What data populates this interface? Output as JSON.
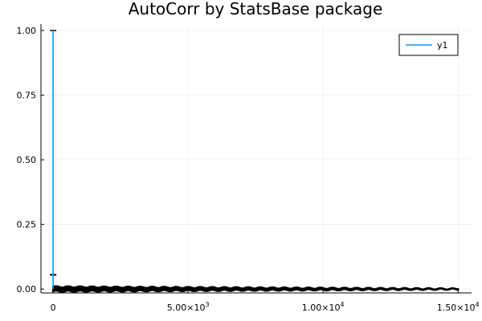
{
  "chart_data": {
    "type": "line",
    "title": "AutoCorr by StatsBase package",
    "xlabel": "",
    "ylabel": "",
    "xlim": [
      -450,
      15500
    ],
    "ylim": [
      -0.015,
      1.025
    ],
    "grid": true,
    "legend_position": "top-right",
    "x_ticks": [
      {
        "value": 0,
        "label": "0",
        "sup": ""
      },
      {
        "value": 5000,
        "label": "5.00×10",
        "sup": "3"
      },
      {
        "value": 10000,
        "label": "1.00×10",
        "sup": "4"
      },
      {
        "value": 15000,
        "label": "1.50×10",
        "sup": "4"
      }
    ],
    "y_ticks": [
      {
        "value": 0.0,
        "label": "0.00"
      },
      {
        "value": 0.25,
        "label": "0.25"
      },
      {
        "value": 0.5,
        "label": "0.50"
      },
      {
        "value": 0.75,
        "label": "0.75"
      },
      {
        "value": 1.0,
        "label": "1.00"
      }
    ],
    "series": [
      {
        "name": "y1",
        "color": "#009af9",
        "x": [
          0,
          1
        ],
        "y": [
          1.0,
          0.0
        ]
      }
    ],
    "error_bars": {
      "color": "#000000",
      "x_start": 0,
      "x_end": 15000,
      "x_step": 30,
      "head_x": 0,
      "head_bottom": -0.005,
      "head_top_low": 0.055,
      "head_top_high": 1.0,
      "band_start": 0.012,
      "band_end": 0.004
    }
  }
}
